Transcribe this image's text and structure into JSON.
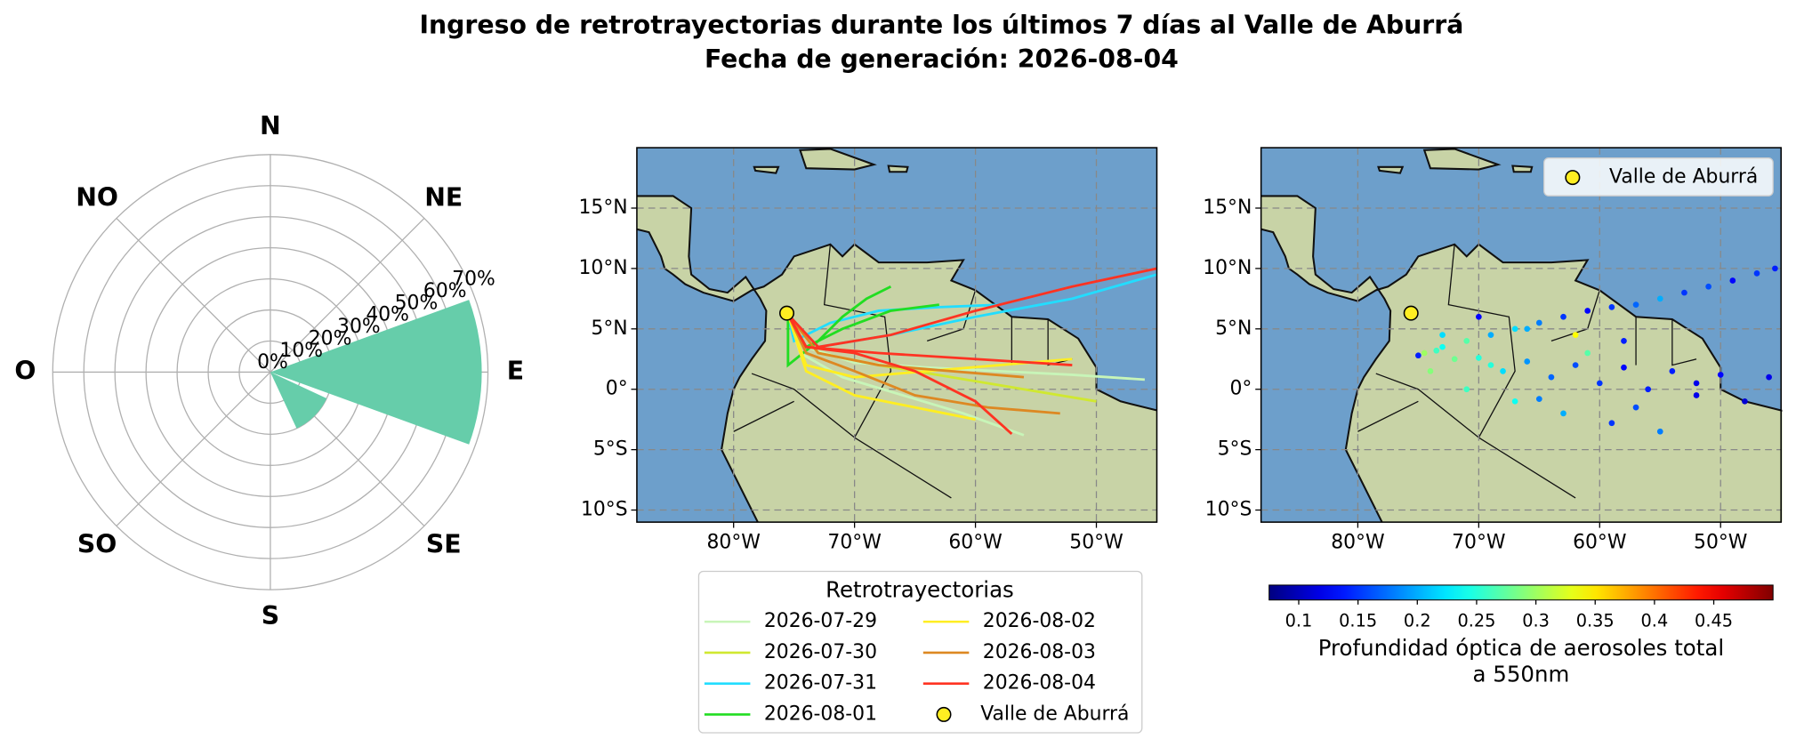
{
  "title_lines": [
    "Ingreso de retrotrayectorias durante los últimos 7 días al Valle de Aburrá",
    "Fecha de generación: 2026-08-04"
  ],
  "chart_data": [
    {
      "type": "polar-bar",
      "categories": [
        "N",
        "NE",
        "E",
        "SE",
        "S",
        "SO",
        "O",
        "NO"
      ],
      "values": [
        0,
        0,
        68,
        20,
        0,
        0,
        0,
        0
      ],
      "color": "#66cdaa",
      "rlim": [
        0,
        70
      ],
      "rticks": [
        {
          "value": 0,
          "label": "0%"
        },
        {
          "value": 10,
          "label": "10%"
        },
        {
          "value": 20,
          "label": "20%"
        },
        {
          "value": 30,
          "label": "30%"
        },
        {
          "value": 40,
          "label": "40%"
        },
        {
          "value": 50,
          "label": "50%"
        },
        {
          "value": 60,
          "label": "60%"
        },
        {
          "value": 70,
          "label": "70%"
        }
      ]
    },
    {
      "type": "trajectory-map",
      "xlim": [
        -88,
        -45
      ],
      "ylim": [
        -11,
        20
      ],
      "xticks": [
        {
          "value": -80,
          "label": "80°W"
        },
        {
          "value": -70,
          "label": "70°W"
        },
        {
          "value": -60,
          "label": "60°W"
        },
        {
          "value": -50,
          "label": "50°W"
        }
      ],
      "yticks": [
        {
          "value": 15,
          "label": "15°N"
        },
        {
          "value": 10,
          "label": "10°N"
        },
        {
          "value": 5,
          "label": "5°N"
        },
        {
          "value": 0,
          "label": "0°"
        },
        {
          "value": -5,
          "label": "5°S"
        },
        {
          "value": -10,
          "label": "10°S"
        }
      ],
      "legend_title": "Retrotrayectorias",
      "series": [
        {
          "name": "2026-07-29",
          "color": "#c8f5b8",
          "lines": [
            {
              "lon": [
                -46,
                -52,
                -58,
                -64,
                -70,
                -74,
                -75.5
              ],
              "lat": [
                0.8,
                1.2,
                1.5,
                1.8,
                2.2,
                3.5,
                6.2
              ]
            },
            {
              "lon": [
                -56,
                -61,
                -66,
                -71,
                -74.5,
                -75.5
              ],
              "lat": [
                -3.8,
                -2,
                -0.5,
                1,
                3,
                6.2
              ]
            }
          ]
        },
        {
          "name": "2026-07-30",
          "color": "#d0e830",
          "lines": [
            {
              "lon": [
                -50,
                -56,
                -62,
                -68,
                -73,
                -75.5
              ],
              "lat": [
                -1,
                0,
                1,
                2,
                3,
                6.2
              ]
            }
          ]
        },
        {
          "name": "2026-07-31",
          "color": "#22ddff",
          "lines": [
            {
              "lon": [
                -58,
                -63,
                -68,
                -72,
                -75,
                -75.5
              ],
              "lat": [
                7,
                6.8,
                6.5,
                5.5,
                4,
                6.2
              ]
            },
            {
              "lon": [
                -45,
                -52,
                -60,
                -67,
                -73,
                -75.5
              ],
              "lat": [
                9.5,
                7.5,
                6,
                4.5,
                3.5,
                6.2
              ]
            }
          ]
        },
        {
          "name": "2026-08-01",
          "color": "#22dd22",
          "lines": [
            {
              "lon": [
                -67,
                -69,
                -71,
                -73,
                -75.5,
                -75.5
              ],
              "lat": [
                8.5,
                7.5,
                6,
                4,
                2,
                6.2
              ]
            },
            {
              "lon": [
                -63,
                -67,
                -71,
                -74,
                -75.5
              ],
              "lat": [
                7,
                6.5,
                5,
                3.5,
                6.2
              ]
            }
          ]
        },
        {
          "name": "2026-08-02",
          "color": "#ffee22",
          "lines": [
            {
              "lon": [
                -52,
                -58,
                -64,
                -70,
                -74,
                -75.5
              ],
              "lat": [
                2.5,
                2,
                1.5,
                1,
                2,
                6.2
              ]
            },
            {
              "lon": [
                -60,
                -65,
                -70,
                -74,
                -75.5
              ],
              "lat": [
                -2.5,
                -1.5,
                -0.5,
                1.5,
                6.2
              ]
            }
          ]
        },
        {
          "name": "2026-08-03",
          "color": "#dd8822",
          "lines": [
            {
              "lon": [
                -53,
                -59,
                -65,
                -70,
                -74,
                -75.5
              ],
              "lat": [
                -2,
                -1.5,
                -0.5,
                1.5,
                3,
                6.2
              ]
            },
            {
              "lon": [
                -56,
                -62,
                -68,
                -73,
                -75.5
              ],
              "lat": [
                1,
                1.5,
                2,
                3,
                6.2
              ]
            }
          ]
        },
        {
          "name": "2026-08-04",
          "color": "#ff3322",
          "lines": [
            {
              "lon": [
                -45,
                -52,
                -60,
                -67,
                -73,
                -75.5
              ],
              "lat": [
                10,
                8.5,
                6.5,
                4.5,
                3.5,
                6.2
              ]
            },
            {
              "lon": [
                -57,
                -60,
                -65,
                -70,
                -74,
                -75.5
              ],
              "lat": [
                -3.7,
                -1,
                1.5,
                3,
                3.5,
                6.2
              ]
            },
            {
              "lon": [
                -52,
                -60,
                -68,
                -74,
                -75.5
              ],
              "lat": [
                2,
                2.5,
                3,
                3.5,
                6.2
              ]
            }
          ]
        }
      ],
      "site": {
        "name": "Valle de Aburrá",
        "lon": -75.6,
        "lat": 6.3,
        "color": "#ffee22"
      }
    },
    {
      "type": "scatter-map",
      "xlim": [
        -88,
        -45
      ],
      "ylim": [
        -11,
        20
      ],
      "xticks": [
        {
          "value": -80,
          "label": "80°W"
        },
        {
          "value": -70,
          "label": "70°W"
        },
        {
          "value": -60,
          "label": "60°W"
        },
        {
          "value": -50,
          "label": "50°W"
        }
      ],
      "yticks": [
        {
          "value": 15,
          "label": "15°N"
        },
        {
          "value": 10,
          "label": "10°N"
        },
        {
          "value": 5,
          "label": "5°N"
        },
        {
          "value": 0,
          "label": "0°"
        },
        {
          "value": -5,
          "label": "5°S"
        },
        {
          "value": -10,
          "label": "10°S"
        }
      ],
      "points": {
        "lon": [
          -45.5,
          -47,
          -49,
          -51,
          -53,
          -55,
          -57,
          -59,
          -61,
          -63,
          -65,
          -67,
          -69,
          -71,
          -73,
          -74.5,
          -46,
          -50,
          -54,
          -58,
          -62,
          -66,
          -70,
          -73.5,
          -48,
          -52,
          -56,
          -60,
          -64,
          -68,
          -72,
          -55,
          -59,
          -63,
          -67,
          -71,
          -74,
          -58,
          -62,
          -66,
          -70,
          -52,
          -57,
          -61,
          -65,
          -69,
          -73,
          -75
        ],
        "lat": [
          10,
          9.6,
          9,
          8.5,
          8,
          7.5,
          7,
          6.8,
          6.5,
          6,
          5.5,
          5,
          4.5,
          4,
          3.5,
          3,
          1,
          1.2,
          1.5,
          1.8,
          2,
          2.3,
          2.6,
          3.2,
          -1,
          -0.5,
          0,
          0.5,
          1,
          1.5,
          2.5,
          -3.5,
          -2.8,
          -2,
          -1,
          0,
          1.5,
          4,
          4.5,
          5,
          6,
          0.5,
          -1.5,
          3,
          -0.8,
          2,
          4.5,
          2.8
        ],
        "values": [
          0.14,
          0.15,
          0.13,
          0.16,
          0.15,
          0.2,
          0.17,
          0.15,
          0.13,
          0.15,
          0.18,
          0.22,
          0.2,
          0.27,
          0.24,
          0.3,
          0.12,
          0.13,
          0.14,
          0.13,
          0.16,
          0.19,
          0.25,
          0.26,
          0.11,
          0.12,
          0.14,
          0.15,
          0.17,
          0.22,
          0.28,
          0.18,
          0.15,
          0.2,
          0.24,
          0.26,
          0.29,
          0.14,
          0.34,
          0.2,
          0.13,
          0.12,
          0.16,
          0.27,
          0.18,
          0.25,
          0.22,
          0.14
        ]
      },
      "colormap": "jet",
      "clim": [
        0.075,
        0.5
      ],
      "cticks": [
        0.1,
        0.15,
        0.2,
        0.25,
        0.3,
        0.35,
        0.4,
        0.45
      ],
      "colorbar_label": [
        "Profundidad óptica de aerosoles total",
        "a 550nm"
      ],
      "site": {
        "name": "Valle de Aburrá",
        "lon": -75.6,
        "lat": 6.3,
        "color": "#ffee22"
      }
    }
  ]
}
